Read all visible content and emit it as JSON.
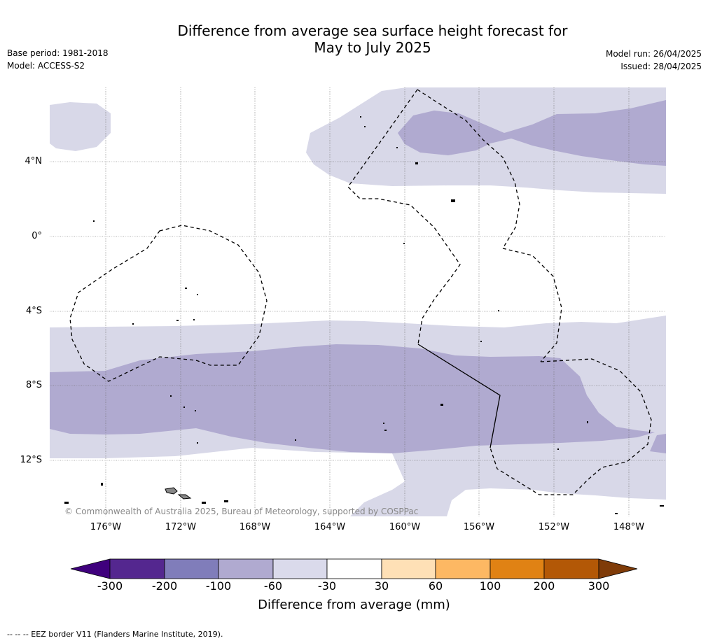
{
  "header": {
    "title_line1": "Difference from average sea surface height forecast for",
    "title_line2": "May to July 2025",
    "base_period": "Base period: 1981-2018",
    "model": "Model: ACCESS-S2",
    "model_run": "Model run: 26/04/2025",
    "issued": "Issued: 28/04/2025"
  },
  "map": {
    "lat_labels": [
      "4°N",
      "0°",
      "4°S",
      "8°S",
      "12°S"
    ],
    "lon_labels": [
      "176°W",
      "172°W",
      "168°W",
      "164°W",
      "160°W",
      "156°W",
      "152°W",
      "148°W"
    ],
    "copyright": "© Commonwealth of Australia 2025, Bureau of Meteorology, supported by COSPPac",
    "fill_colors": {
      "light": "#d8d8e8",
      "medium": "#b0aad0",
      "land": "#888888"
    }
  },
  "colorbar": {
    "title": "Difference from average (mm)",
    "ticks": [
      "-300",
      "-200",
      "-100",
      "-60",
      "-30",
      "30",
      "60",
      "100",
      "200",
      "300"
    ],
    "colors": [
      "#3f007d",
      "#54278f",
      "#807dba",
      "#b0aad0",
      "#dadaeb",
      "#ffffff",
      "#fee0b6",
      "#fdb863",
      "#e08214",
      "#b35806",
      "#7f3b08"
    ]
  },
  "footer": {
    "legend_text": "--  --  -- EEZ border V11 (Flanders Marine Institute, 2019)."
  }
}
